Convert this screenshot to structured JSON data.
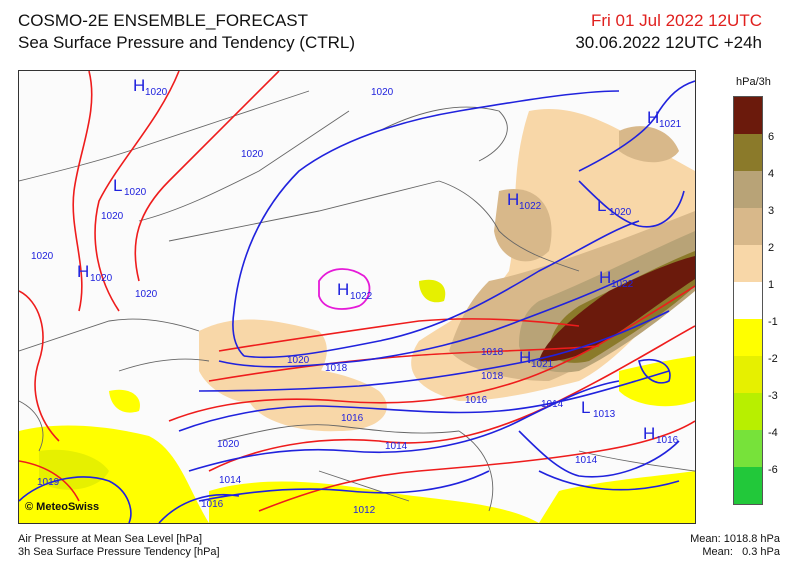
{
  "header": {
    "product": "COSMO-2E ENSEMBLE_FORECAST",
    "subtitle": "Sea Surface Pressure and Tendency (CTRL)",
    "valid_date": "Fri 01 Jul 2022 12UTC",
    "run_info": "30.06.2022 12UTC +24h"
  },
  "legend": {
    "unit": "hPa/3h",
    "colors": [
      "#6b1a0c",
      "#8b7a2a",
      "#b8a377",
      "#d8b88a",
      "#f8d7a8",
      "#ffffff",
      "#ffff00",
      "#e6f000",
      "#b8ef00",
      "#77e23a",
      "#22c83a",
      "#0a8a2a"
    ],
    "labels": [
      "6",
      "4",
      "3",
      "2",
      "1",
      "-1",
      "-2",
      "-3",
      "-4",
      "-6"
    ]
  },
  "map": {
    "pressure_labels": [
      {
        "text": "1020"
      },
      {
        "text": "1020"
      },
      {
        "text": "1020"
      },
      {
        "text": "1020"
      },
      {
        "text": "1020"
      },
      {
        "text": "1020"
      },
      {
        "text": "1018"
      },
      {
        "text": "1018"
      },
      {
        "text": "1018"
      },
      {
        "text": "1016"
      },
      {
        "text": "1016"
      },
      {
        "text": "1014"
      },
      {
        "text": "1014"
      },
      {
        "text": "1014"
      },
      {
        "text": "1014"
      },
      {
        "text": "1016"
      },
      {
        "text": "1012"
      },
      {
        "text": "1019"
      },
      {
        "text": "1020"
      }
    ],
    "centers": [
      {
        "letter": "H",
        "value": "1020"
      },
      {
        "letter": "L",
        "value": "1020"
      },
      {
        "letter": "H",
        "value": "1020"
      },
      {
        "letter": "H",
        "value": "1022"
      },
      {
        "letter": "H",
        "value": "1022"
      },
      {
        "letter": "H",
        "value": "1021"
      },
      {
        "letter": "L",
        "value": "1020"
      },
      {
        "letter": "H",
        "value": "1022"
      },
      {
        "letter": "H",
        "value": "1021"
      },
      {
        "letter": "L",
        "value": "1013"
      },
      {
        "letter": "H",
        "value": "1016"
      }
    ],
    "logo": "© MeteoSwiss"
  },
  "footer": {
    "line1": "Air Pressure at Mean Sea Level [hPa]",
    "line2": "3h Sea Surface Pressure Tendency [hPa]",
    "mean_pressure": "Mean: 1018.8 hPa",
    "mean_tendency": "Mean:   0.3 hPa"
  }
}
